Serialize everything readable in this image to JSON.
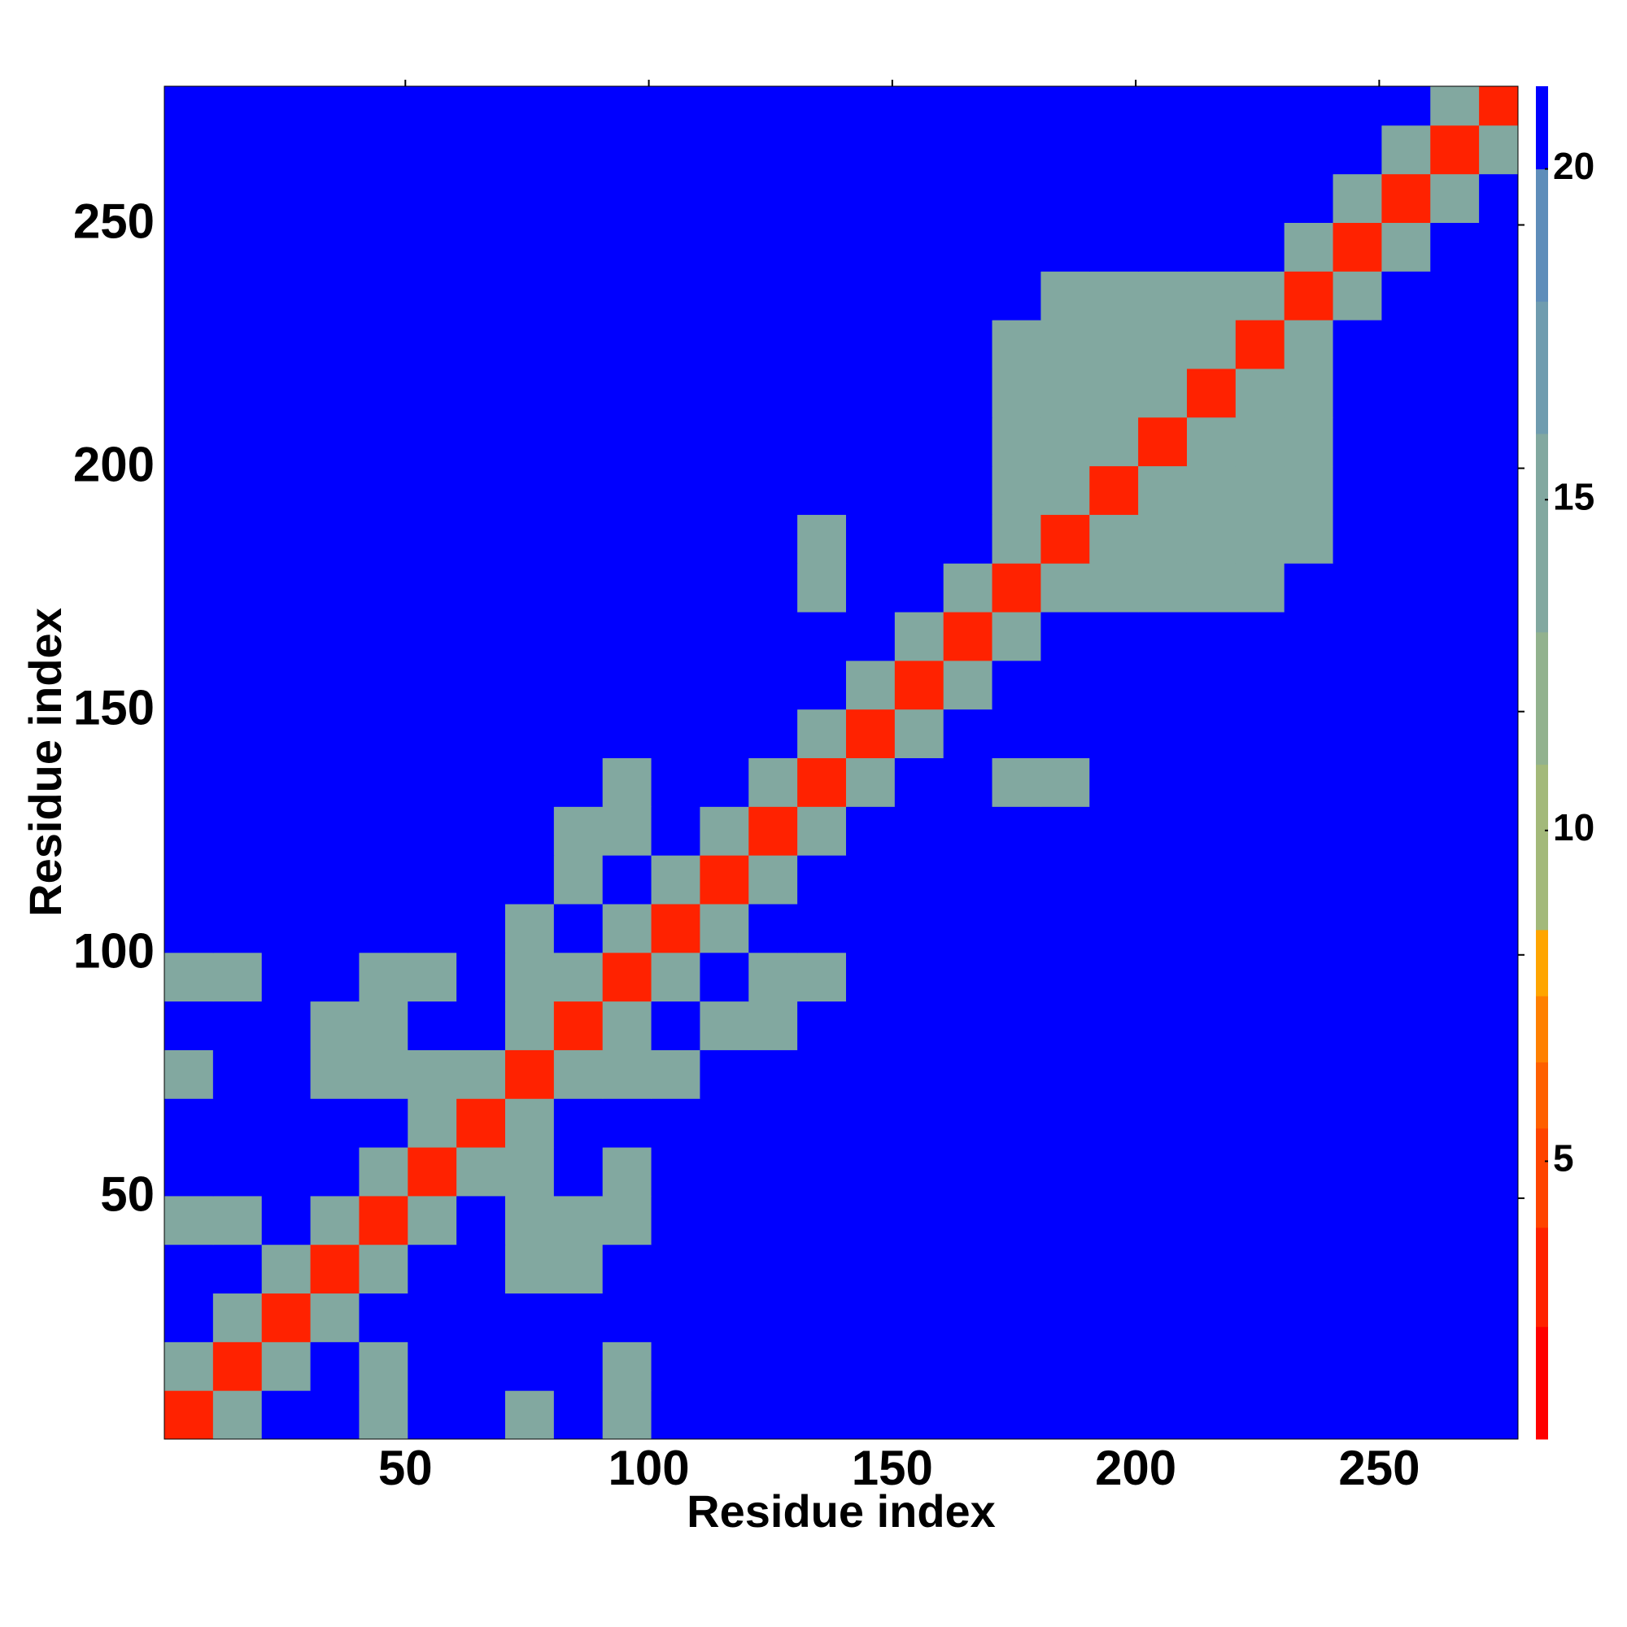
{
  "chart_data": {
    "type": "heatmap",
    "xlabel": "Residue index",
    "ylabel": "Residue index",
    "xbins": [
      0.5,
      10.5,
      20.5,
      30.5,
      40.5,
      50.5,
      60.5,
      70.5,
      80.5,
      90.5,
      100.5,
      110.5,
      120.5,
      130.5,
      140.5,
      150.5,
      160.5,
      170.5,
      180.5,
      190.5,
      200.5,
      210.5,
      220.5,
      230.5,
      240.5,
      250.5,
      260.5,
      270.5,
      278.5
    ],
    "ybins": [
      0.5,
      10.5,
      20.5,
      30.5,
      40.5,
      50.5,
      60.5,
      70.5,
      80.5,
      90.5,
      100.5,
      110.5,
      120.5,
      130.5,
      140.5,
      150.5,
      160.5,
      170.5,
      180.5,
      190.5,
      200.5,
      210.5,
      220.5,
      230.5,
      240.5,
      250.5,
      260.5,
      270.5,
      278.5
    ],
    "xlim": [
      0.5,
      278.5
    ],
    "ylim": [
      0.5,
      278.5
    ],
    "xticks": [
      50,
      100,
      150,
      200,
      250
    ],
    "yticks": [
      50,
      100,
      150,
      200,
      250
    ],
    "zlim": [
      0.8,
      21.25
    ],
    "zticks": [
      5,
      10,
      15,
      20
    ],
    "colorscale": [
      [
        0.8,
        "#ff0000"
      ],
      [
        2.5,
        "#ff2200"
      ],
      [
        4,
        "#ff4400"
      ],
      [
        5.5,
        "#ff6000"
      ],
      [
        6.5,
        "#ff8000"
      ],
      [
        7.5,
        "#ffa500"
      ],
      [
        8.5,
        "#a3b97a"
      ],
      [
        11,
        "#92b28e"
      ],
      [
        13,
        "#82a8a0"
      ],
      [
        16,
        "#6f9caf"
      ],
      [
        18,
        "#5e8dba"
      ],
      [
        20,
        "#0000ff"
      ]
    ],
    "z": [
      [
        3,
        15,
        21,
        21,
        15,
        21,
        21,
        15,
        21,
        15,
        21,
        21,
        21,
        21,
        21,
        21,
        21,
        21,
        21,
        21,
        21,
        21,
        21,
        21,
        21,
        21,
        21,
        21
      ],
      [
        15,
        3,
        15,
        21,
        15,
        21,
        21,
        21,
        21,
        15,
        21,
        21,
        21,
        21,
        21,
        21,
        21,
        21,
        21,
        21,
        21,
        21,
        21,
        21,
        21,
        21,
        21,
        21
      ],
      [
        21,
        15,
        3,
        15,
        21,
        21,
        21,
        21,
        21,
        21,
        21,
        21,
        21,
        21,
        21,
        21,
        21,
        21,
        21,
        21,
        21,
        21,
        21,
        21,
        21,
        21,
        21,
        21
      ],
      [
        21,
        21,
        15,
        3,
        15,
        21,
        21,
        15,
        15,
        21,
        21,
        21,
        21,
        21,
        21,
        21,
        21,
        21,
        21,
        21,
        21,
        21,
        21,
        21,
        21,
        21,
        21,
        21
      ],
      [
        15,
        15,
        21,
        15,
        3,
        15,
        21,
        15,
        15,
        15,
        21,
        21,
        21,
        21,
        21,
        21,
        21,
        21,
        21,
        21,
        21,
        21,
        21,
        21,
        21,
        21,
        21,
        21
      ],
      [
        21,
        21,
        21,
        21,
        15,
        3,
        15,
        15,
        21,
        15,
        21,
        21,
        21,
        21,
        21,
        21,
        21,
        21,
        21,
        21,
        21,
        21,
        21,
        21,
        21,
        21,
        21,
        21
      ],
      [
        21,
        21,
        21,
        21,
        21,
        15,
        3,
        15,
        21,
        21,
        21,
        21,
        21,
        21,
        21,
        21,
        21,
        21,
        21,
        21,
        21,
        21,
        21,
        21,
        21,
        21,
        21,
        21
      ],
      [
        15,
        21,
        21,
        15,
        15,
        15,
        15,
        3,
        15,
        15,
        15,
        21,
        21,
        21,
        21,
        21,
        21,
        21,
        21,
        21,
        21,
        21,
        21,
        21,
        21,
        21,
        21,
        21
      ],
      [
        21,
        21,
        21,
        15,
        15,
        21,
        21,
        15,
        3,
        15,
        21,
        15,
        15,
        21,
        21,
        21,
        21,
        21,
        21,
        21,
        21,
        21,
        21,
        21,
        21,
        21,
        21,
        21
      ],
      [
        15,
        15,
        21,
        21,
        15,
        15,
        21,
        15,
        15,
        3,
        15,
        21,
        15,
        15,
        21,
        21,
        21,
        21,
        21,
        21,
        21,
        21,
        21,
        21,
        21,
        21,
        21,
        21
      ],
      [
        21,
        21,
        21,
        21,
        21,
        21,
        21,
        15,
        21,
        15,
        3,
        15,
        21,
        21,
        21,
        21,
        21,
        21,
        21,
        21,
        21,
        21,
        21,
        21,
        21,
        21,
        21,
        21
      ],
      [
        21,
        21,
        21,
        21,
        21,
        21,
        21,
        21,
        15,
        21,
        15,
        3,
        15,
        21,
        21,
        21,
        21,
        21,
        21,
        21,
        21,
        21,
        21,
        21,
        21,
        21,
        21,
        21
      ],
      [
        21,
        21,
        21,
        21,
        21,
        21,
        21,
        21,
        15,
        15,
        21,
        15,
        3,
        15,
        21,
        21,
        21,
        21,
        21,
        21,
        21,
        21,
        21,
        21,
        21,
        21,
        21,
        21
      ],
      [
        21,
        21,
        21,
        21,
        21,
        21,
        21,
        21,
        21,
        15,
        21,
        21,
        15,
        3,
        15,
        21,
        21,
        15,
        15,
        21,
        21,
        21,
        21,
        21,
        21,
        21,
        21,
        21
      ],
      [
        21,
        21,
        21,
        21,
        21,
        21,
        21,
        21,
        21,
        21,
        21,
        21,
        21,
        15,
        3,
        15,
        21,
        21,
        21,
        21,
        21,
        21,
        21,
        21,
        21,
        21,
        21,
        21
      ],
      [
        21,
        21,
        21,
        21,
        21,
        21,
        21,
        21,
        21,
        21,
        21,
        21,
        21,
        21,
        15,
        3,
        15,
        21,
        21,
        21,
        21,
        21,
        21,
        21,
        21,
        21,
        21,
        21
      ],
      [
        21,
        21,
        21,
        21,
        21,
        21,
        21,
        21,
        21,
        21,
        21,
        21,
        21,
        21,
        21,
        15,
        3,
        15,
        21,
        21,
        21,
        21,
        21,
        21,
        21,
        21,
        21,
        21
      ],
      [
        21,
        21,
        21,
        21,
        21,
        21,
        21,
        21,
        21,
        21,
        21,
        21,
        21,
        15,
        21,
        21,
        15,
        3,
        15,
        15,
        15,
        15,
        15,
        21,
        21,
        21,
        21,
        21
      ],
      [
        21,
        21,
        21,
        21,
        21,
        21,
        21,
        21,
        21,
        21,
        21,
        21,
        21,
        15,
        21,
        21,
        21,
        15,
        3,
        15,
        15,
        15,
        15,
        15,
        21,
        21,
        21,
        21
      ],
      [
        21,
        21,
        21,
        21,
        21,
        21,
        21,
        21,
        21,
        21,
        21,
        21,
        21,
        21,
        21,
        21,
        21,
        15,
        15,
        3,
        15,
        15,
        15,
        15,
        21,
        21,
        21,
        21
      ],
      [
        21,
        21,
        21,
        21,
        21,
        21,
        21,
        21,
        21,
        21,
        21,
        21,
        21,
        21,
        21,
        21,
        21,
        15,
        15,
        15,
        3,
        15,
        15,
        15,
        21,
        21,
        21,
        21
      ],
      [
        21,
        21,
        21,
        21,
        21,
        21,
        21,
        21,
        21,
        21,
        21,
        21,
        21,
        21,
        21,
        21,
        21,
        15,
        15,
        15,
        15,
        3,
        15,
        15,
        21,
        21,
        21,
        21
      ],
      [
        21,
        21,
        21,
        21,
        21,
        21,
        21,
        21,
        21,
        21,
        21,
        21,
        21,
        21,
        21,
        21,
        21,
        15,
        15,
        15,
        15,
        15,
        3,
        15,
        21,
        21,
        21,
        21
      ],
      [
        21,
        21,
        21,
        21,
        21,
        21,
        21,
        21,
        21,
        21,
        21,
        21,
        21,
        21,
        21,
        21,
        21,
        21,
        15,
        15,
        15,
        15,
        15,
        3,
        15,
        21,
        21,
        21
      ],
      [
        21,
        21,
        21,
        21,
        21,
        21,
        21,
        21,
        21,
        21,
        21,
        21,
        21,
        21,
        21,
        21,
        21,
        21,
        21,
        21,
        21,
        21,
        21,
        15,
        3,
        15,
        21,
        21
      ],
      [
        21,
        21,
        21,
        21,
        21,
        21,
        21,
        21,
        21,
        21,
        21,
        21,
        21,
        21,
        21,
        21,
        21,
        21,
        21,
        21,
        21,
        21,
        21,
        21,
        15,
        3,
        15,
        21
      ],
      [
        21,
        21,
        21,
        21,
        21,
        21,
        21,
        21,
        21,
        21,
        21,
        21,
        21,
        21,
        21,
        21,
        21,
        21,
        21,
        21,
        21,
        21,
        21,
        21,
        21,
        15,
        3,
        15
      ],
      [
        21,
        21,
        21,
        21,
        21,
        21,
        21,
        21,
        21,
        21,
        21,
        21,
        21,
        21,
        21,
        21,
        21,
        21,
        21,
        21,
        21,
        21,
        21,
        21,
        21,
        21,
        15,
        3
      ]
    ]
  }
}
